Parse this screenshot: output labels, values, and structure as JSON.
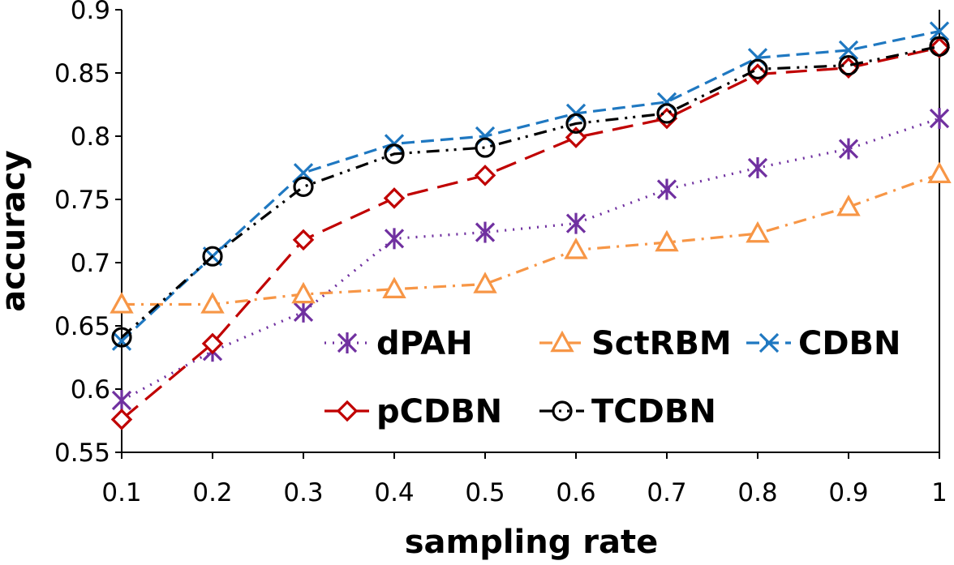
{
  "chart_data": {
    "type": "line",
    "title": "",
    "xlabel": "sampling rate",
    "ylabel": "accuracy",
    "xlim": [
      0.1,
      1
    ],
    "ylim": [
      0.55,
      0.9
    ],
    "x": [
      0.1,
      0.2,
      0.3,
      0.4,
      0.5,
      0.6,
      0.7,
      0.8,
      0.9,
      1
    ],
    "x_tick_labels": [
      "0.1",
      "0.2",
      "0.3",
      "0.4",
      "0.5",
      "0.6",
      "0.7",
      "0.8",
      "0.9",
      "1"
    ],
    "y_ticks": [
      0.55,
      0.6,
      0.65,
      0.7,
      0.75,
      0.8,
      0.85,
      0.9
    ],
    "y_tick_labels": [
      "0.55",
      "0.6",
      "0.65",
      "0.7",
      "0.75",
      "0.8",
      "0.85",
      "0.9"
    ],
    "grid": false,
    "legend_position": "bottom-center inside plot",
    "series": [
      {
        "name": "dPAH",
        "color": "#7030A0",
        "marker": "asterisk",
        "dash": "dot",
        "values": [
          0.591,
          0.63,
          0.661,
          0.719,
          0.724,
          0.731,
          0.758,
          0.775,
          0.79,
          0.814
        ]
      },
      {
        "name": "SctRBM",
        "color": "#F79646",
        "marker": "triangle",
        "dash": "dashdot",
        "values": [
          0.667,
          0.667,
          0.675,
          0.679,
          0.683,
          0.71,
          0.716,
          0.723,
          0.744,
          0.77
        ]
      },
      {
        "name": "CDBN",
        "color": "#1F78C1",
        "marker": "x",
        "dash": "dash",
        "values": [
          0.638,
          0.705,
          0.771,
          0.794,
          0.8,
          0.818,
          0.827,
          0.862,
          0.868,
          0.883
        ]
      },
      {
        "name": "pCDBN",
        "color": "#C00000",
        "marker": "diamond",
        "dash": "longdash",
        "values": [
          0.576,
          0.636,
          0.718,
          0.751,
          0.769,
          0.799,
          0.814,
          0.849,
          0.854,
          0.87
        ]
      },
      {
        "name": "TCDBN",
        "color": "#000000",
        "marker": "circle",
        "dash": "dashdotdot",
        "values": [
          0.641,
          0.705,
          0.76,
          0.786,
          0.791,
          0.81,
          0.818,
          0.853,
          0.856,
          0.871
        ]
      }
    ]
  }
}
